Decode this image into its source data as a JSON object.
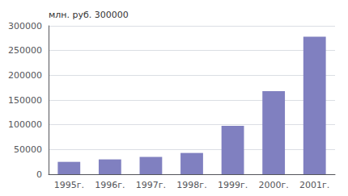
{
  "chart_data": {
    "type": "bar",
    "ylabel": "млн. руб. 300000",
    "categories": [
      "1995г.",
      "1996г.",
      "1997г.",
      "1998г.",
      "1999г.",
      "2000г.",
      "2001г."
    ],
    "values": [
      25000,
      30000,
      35000,
      43000,
      98000,
      168000,
      278000
    ],
    "color": "#8080c0",
    "ylim": [
      0,
      300000
    ],
    "yticks": [
      0,
      50000,
      100000,
      150000,
      200000,
      250000,
      300000
    ],
    "grid": true
  }
}
